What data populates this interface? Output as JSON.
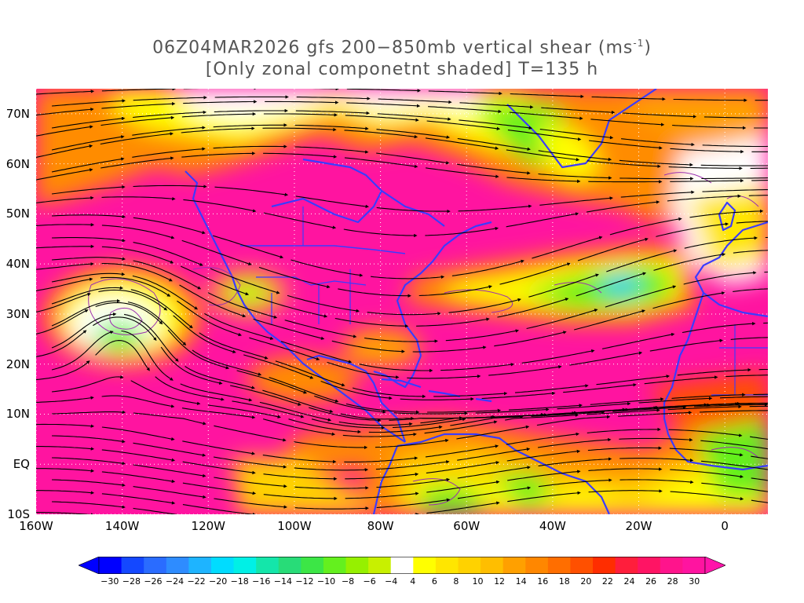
{
  "title": {
    "line1_pre": "06Z04MAR2026 gfs 200−850mb vertical shear (ms",
    "line1_sup": "-1",
    "line1_post": ")",
    "line2": "[Only zonal componetnt shaded] T=135 h"
  },
  "map": {
    "lat_labels": [
      {
        "text": "70N",
        "lat": 70
      },
      {
        "text": "60N",
        "lat": 60
      },
      {
        "text": "50N",
        "lat": 50
      },
      {
        "text": "40N",
        "lat": 40
      },
      {
        "text": "30N",
        "lat": 30
      },
      {
        "text": "20N",
        "lat": 20
      },
      {
        "text": "10N",
        "lat": 10
      },
      {
        "text": "EQ",
        "lat": 0
      },
      {
        "text": "10S",
        "lat": -10
      }
    ],
    "lon_labels": [
      {
        "text": "160W",
        "lon": -160
      },
      {
        "text": "140W",
        "lon": -140
      },
      {
        "text": "120W",
        "lon": -120
      },
      {
        "text": "100W",
        "lon": -100
      },
      {
        "text": "80W",
        "lon": -80
      },
      {
        "text": "60W",
        "lon": -60
      },
      {
        "text": "40W",
        "lon": -40
      },
      {
        "text": "20W",
        "lon": -20
      },
      {
        "text": "0",
        "lon": 0
      }
    ],
    "lon_range": [
      -160,
      10
    ],
    "lat_range": [
      -10,
      75
    ],
    "gridlines": "dotted"
  },
  "colorbar": {
    "labels": [
      "-30",
      "-28",
      "-26",
      "-24",
      "-22",
      "-20",
      "-18",
      "-16",
      "-14",
      "-12",
      "-10",
      "-8",
      "-6",
      "-4",
      "4",
      "6",
      "8",
      "10",
      "12",
      "14",
      "16",
      "18",
      "20",
      "22",
      "24",
      "26",
      "28",
      "30"
    ],
    "colors": [
      "#0000ff",
      "#1448ff",
      "#2a6cff",
      "#2e8cff",
      "#1eb4ff",
      "#00dcff",
      "#00f0e6",
      "#14e6aa",
      "#28dc78",
      "#3ce646",
      "#64f01e",
      "#96f000",
      "#c8f000",
      "#ffffff",
      "#ffff00",
      "#ffe600",
      "#ffd200",
      "#ffbe00",
      "#ffa000",
      "#ff8700",
      "#ff6e00",
      "#ff5000",
      "#ff2d00",
      "#ff1e3c",
      "#ff1464",
      "#ff148c",
      "#ff14a0"
    ],
    "end_low_color": "#0000ff",
    "end_high_color": "#ff14aa"
  },
  "colors": {
    "strong_westerly": "#ff14a0",
    "moderate": "#ff7800",
    "weak": "#ffff00",
    "easterly": "#64f01e",
    "coast": "#3b3bff",
    "streamline": "#000000"
  }
}
